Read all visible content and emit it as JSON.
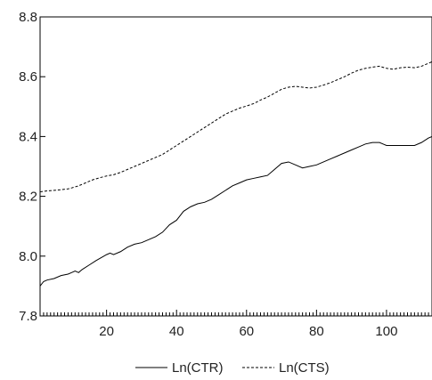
{
  "chart_data": {
    "type": "line",
    "title": "",
    "xlabel": "",
    "ylabel": "",
    "xlim": [
      1,
      113
    ],
    "ylim": [
      7.8,
      8.8
    ],
    "x_ticks": [
      20,
      40,
      60,
      80,
      100
    ],
    "y_ticks": [
      7.8,
      8.0,
      8.2,
      8.4,
      8.6,
      8.8
    ],
    "grid": false,
    "legend_position": "bottom-center",
    "series": [
      {
        "name": "Ln(CTR)",
        "style": "solid",
        "color": "#000000",
        "points": [
          [
            1,
            7.9
          ],
          [
            2,
            7.915
          ],
          [
            3,
            7.92
          ],
          [
            5,
            7.925
          ],
          [
            7,
            7.935
          ],
          [
            9,
            7.94
          ],
          [
            10,
            7.945
          ],
          [
            11,
            7.95
          ],
          [
            12,
            7.945
          ],
          [
            13,
            7.955
          ],
          [
            15,
            7.97
          ],
          [
            17,
            7.985
          ],
          [
            20,
            8.005
          ],
          [
            21,
            8.01
          ],
          [
            22,
            8.005
          ],
          [
            24,
            8.015
          ],
          [
            26,
            8.03
          ],
          [
            28,
            8.04
          ],
          [
            30,
            8.045
          ],
          [
            32,
            8.055
          ],
          [
            34,
            8.065
          ],
          [
            36,
            8.08
          ],
          [
            38,
            8.105
          ],
          [
            40,
            8.12
          ],
          [
            41,
            8.135
          ],
          [
            42,
            8.15
          ],
          [
            44,
            8.165
          ],
          [
            46,
            8.175
          ],
          [
            48,
            8.18
          ],
          [
            50,
            8.19
          ],
          [
            52,
            8.205
          ],
          [
            54,
            8.22
          ],
          [
            56,
            8.235
          ],
          [
            58,
            8.245
          ],
          [
            60,
            8.255
          ],
          [
            62,
            8.26
          ],
          [
            64,
            8.265
          ],
          [
            66,
            8.27
          ],
          [
            68,
            8.29
          ],
          [
            70,
            8.31
          ],
          [
            72,
            8.315
          ],
          [
            74,
            8.305
          ],
          [
            76,
            8.295
          ],
          [
            78,
            8.3
          ],
          [
            80,
            8.305
          ],
          [
            82,
            8.315
          ],
          [
            84,
            8.325
          ],
          [
            86,
            8.335
          ],
          [
            88,
            8.345
          ],
          [
            90,
            8.355
          ],
          [
            92,
            8.365
          ],
          [
            94,
            8.375
          ],
          [
            96,
            8.38
          ],
          [
            98,
            8.38
          ],
          [
            99,
            8.375
          ],
          [
            100,
            8.37
          ],
          [
            102,
            8.37
          ],
          [
            104,
            8.37
          ],
          [
            106,
            8.37
          ],
          [
            108,
            8.37
          ],
          [
            110,
            8.38
          ],
          [
            112,
            8.395
          ],
          [
            113,
            8.4
          ]
        ]
      },
      {
        "name": "Ln(CTS)",
        "style": "dashed",
        "color": "#000000",
        "points": [
          [
            1,
            8.215
          ],
          [
            3,
            8.218
          ],
          [
            5,
            8.22
          ],
          [
            7,
            8.222
          ],
          [
            9,
            8.225
          ],
          [
            10,
            8.228
          ],
          [
            12,
            8.235
          ],
          [
            14,
            8.245
          ],
          [
            16,
            8.255
          ],
          [
            18,
            8.262
          ],
          [
            20,
            8.268
          ],
          [
            22,
            8.272
          ],
          [
            24,
            8.28
          ],
          [
            26,
            8.29
          ],
          [
            28,
            8.3
          ],
          [
            30,
            8.31
          ],
          [
            32,
            8.32
          ],
          [
            34,
            8.33
          ],
          [
            36,
            8.34
          ],
          [
            38,
            8.355
          ],
          [
            40,
            8.37
          ],
          [
            42,
            8.385
          ],
          [
            44,
            8.4
          ],
          [
            46,
            8.415
          ],
          [
            48,
            8.43
          ],
          [
            50,
            8.445
          ],
          [
            52,
            8.46
          ],
          [
            54,
            8.475
          ],
          [
            56,
            8.485
          ],
          [
            58,
            8.495
          ],
          [
            60,
            8.502
          ],
          [
            62,
            8.51
          ],
          [
            64,
            8.522
          ],
          [
            66,
            8.532
          ],
          [
            68,
            8.545
          ],
          [
            70,
            8.558
          ],
          [
            72,
            8.565
          ],
          [
            74,
            8.568
          ],
          [
            76,
            8.565
          ],
          [
            78,
            8.562
          ],
          [
            80,
            8.565
          ],
          [
            82,
            8.572
          ],
          [
            84,
            8.58
          ],
          [
            86,
            8.59
          ],
          [
            88,
            8.6
          ],
          [
            90,
            8.612
          ],
          [
            92,
            8.622
          ],
          [
            94,
            8.628
          ],
          [
            96,
            8.632
          ],
          [
            98,
            8.635
          ],
          [
            100,
            8.628
          ],
          [
            102,
            8.625
          ],
          [
            104,
            8.63
          ],
          [
            106,
            8.632
          ],
          [
            108,
            8.63
          ],
          [
            110,
            8.635
          ],
          [
            112,
            8.645
          ],
          [
            113,
            8.65
          ]
        ]
      }
    ]
  }
}
